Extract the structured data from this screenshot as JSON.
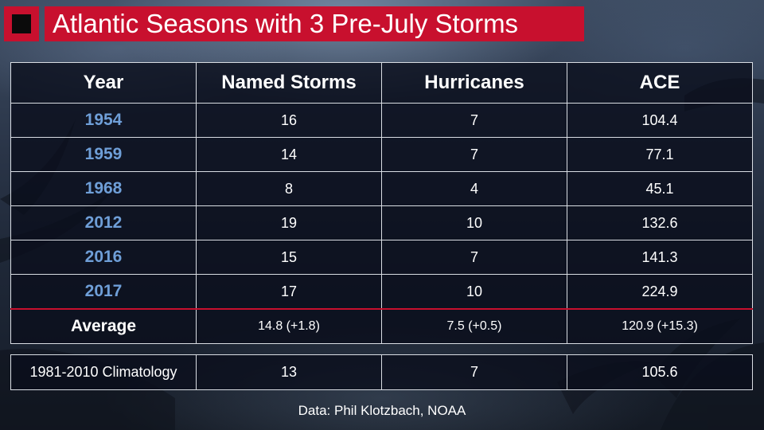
{
  "title": "Atlantic Seasons with 3 Pre-July Storms",
  "table": {
    "columns": [
      "Year",
      "Named Storms",
      "Hurricanes",
      "ACE"
    ],
    "rows": [
      {
        "year": "1954",
        "named_storms": "16",
        "hurricanes": "7",
        "ace": "104.4"
      },
      {
        "year": "1959",
        "named_storms": "14",
        "hurricanes": "7",
        "ace": "77.1"
      },
      {
        "year": "1968",
        "named_storms": "8",
        "hurricanes": "4",
        "ace": "45.1"
      },
      {
        "year": "2012",
        "named_storms": "19",
        "hurricanes": "10",
        "ace": "132.6"
      },
      {
        "year": "2016",
        "named_storms": "15",
        "hurricanes": "7",
        "ace": "141.3"
      },
      {
        "year": "2017",
        "named_storms": "17",
        "hurricanes": "10",
        "ace": "224.9"
      }
    ],
    "average": {
      "label": "Average",
      "named_storms": "14.8 (+1.8)",
      "hurricanes": "7.5 (+0.5)",
      "ace": "120.9 (+15.3)"
    }
  },
  "climatology": {
    "label": "1981-2010 Climatology",
    "named_storms": "13",
    "hurricanes": "7",
    "ace": "105.6"
  },
  "source": "Data: Phil Klotzbach, NOAA",
  "colors": {
    "accent_red": "#c8102e",
    "year_blue": "#6f9fd8",
    "cell_background": "#0a0e1c",
    "text": "#ffffff"
  }
}
